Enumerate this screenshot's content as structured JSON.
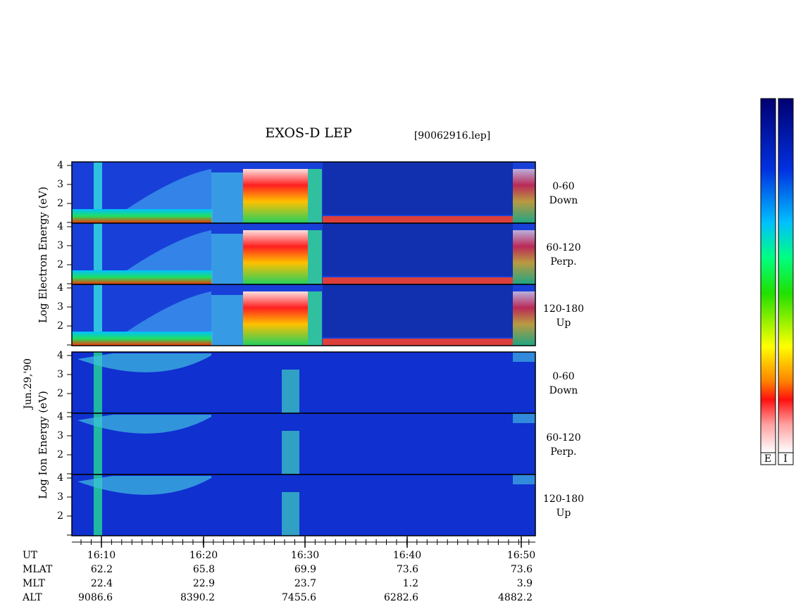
{
  "title": "EXOS-D LEP",
  "file": "[90062916.lep]",
  "date": "Jun.29,'90",
  "electron": {
    "label": "Log  Electron  Energy (eV)",
    "yticks": [
      2,
      3,
      4
    ],
    "panels": [
      [
        "0-60",
        "Down"
      ],
      [
        "60-120",
        "Perp."
      ],
      [
        "120-180",
        "Up"
      ]
    ]
  },
  "ion": {
    "label": "Log  Ion  Energy (eV)",
    "yticks": [
      2,
      3,
      4
    ],
    "panels": [
      [
        "0-60",
        "Down"
      ],
      [
        "60-120",
        "Perp."
      ],
      [
        "120-180",
        "Up"
      ]
    ]
  },
  "table": {
    "rows": [
      [
        "UT",
        "16:10",
        "16:20",
        "16:30",
        "16:40",
        "16:50"
      ],
      [
        "MLAT",
        62.2,
        65.8,
        69.9,
        73.6,
        73.6
      ],
      [
        "MLT",
        22.4,
        22.9,
        23.7,
        1.2,
        3.9
      ],
      [
        "ALT",
        9086.6,
        8390.2,
        7455.6,
        6282.6,
        4882.2
      ]
    ]
  },
  "colorbar": [
    "E",
    "I"
  ]
}
